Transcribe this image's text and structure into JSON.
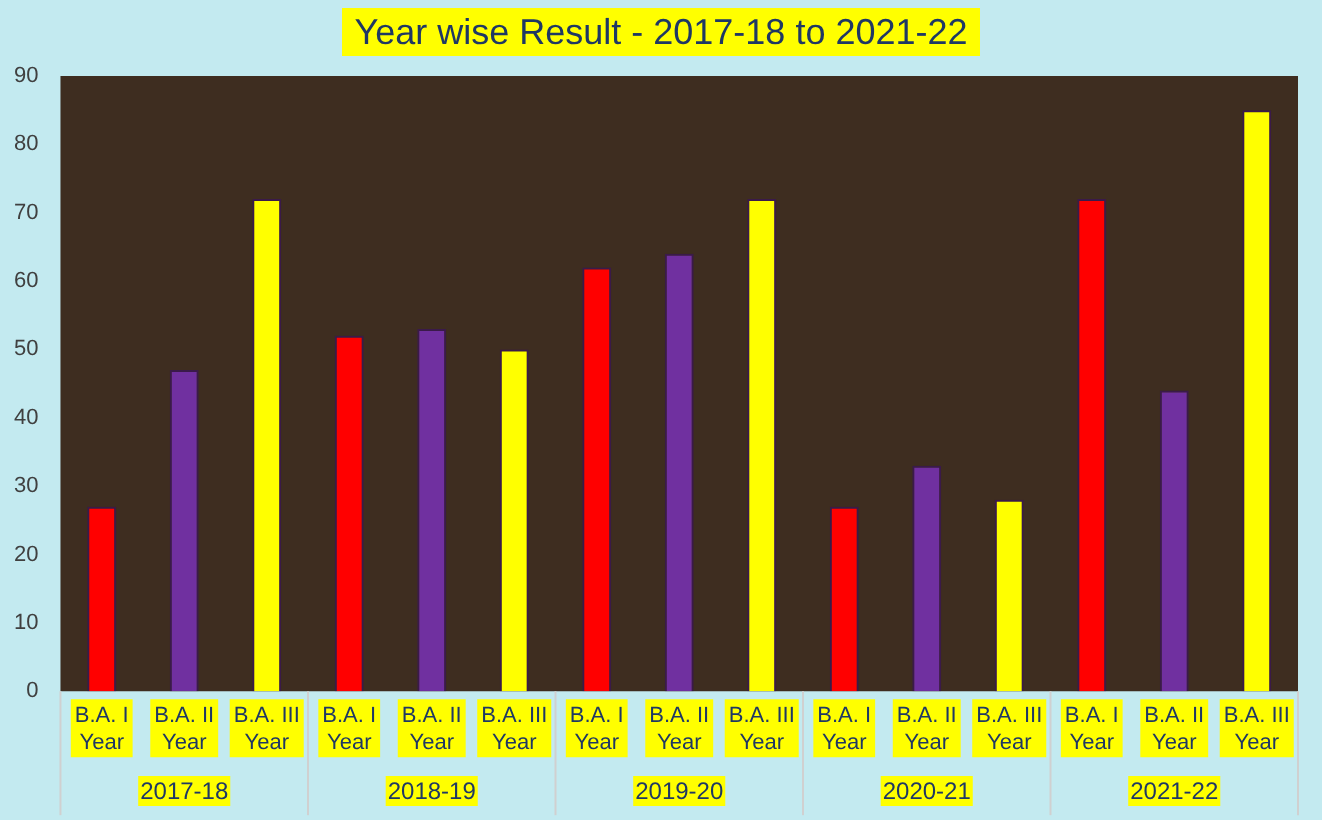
{
  "chart_data": {
    "type": "bar",
    "title": "Year wise  Result - 2017-18 to 2021-22",
    "categories": [
      "B.A. I Year",
      "B.A. II Year",
      "B.A. III Year",
      "B.A. I Year",
      "B.A. II Year",
      "B.A. III Year",
      "B.A. I Year",
      "B.A. II Year",
      "B.A. III Year",
      "B.A. I Year",
      "B.A. II Year",
      "B.A. III Year",
      "B.A. I Year",
      "B.A. II Year",
      "B.A. III Year"
    ],
    "values": [
      27,
      47,
      72,
      52,
      53,
      50,
      62,
      64,
      72,
      27,
      33,
      28,
      72,
      44,
      85
    ],
    "colors": [
      "#ff0000",
      "#7030a0",
      "#ffff00",
      "#ff0000",
      "#7030a0",
      "#ffff00",
      "#ff0000",
      "#7030a0",
      "#ffff00",
      "#ff0000",
      "#7030a0",
      "#ffff00",
      "#ff0000",
      "#7030a0",
      "#ffff00"
    ],
    "ylim": [
      0,
      90
    ],
    "yticks": [
      0,
      10,
      20,
      30,
      40,
      50,
      60,
      70,
      80,
      90
    ],
    "grid": false,
    "legend": false,
    "annotations": [
      "2017-18",
      "2018-19",
      "2019-20",
      "2020-21",
      "2021-22"
    ]
  }
}
